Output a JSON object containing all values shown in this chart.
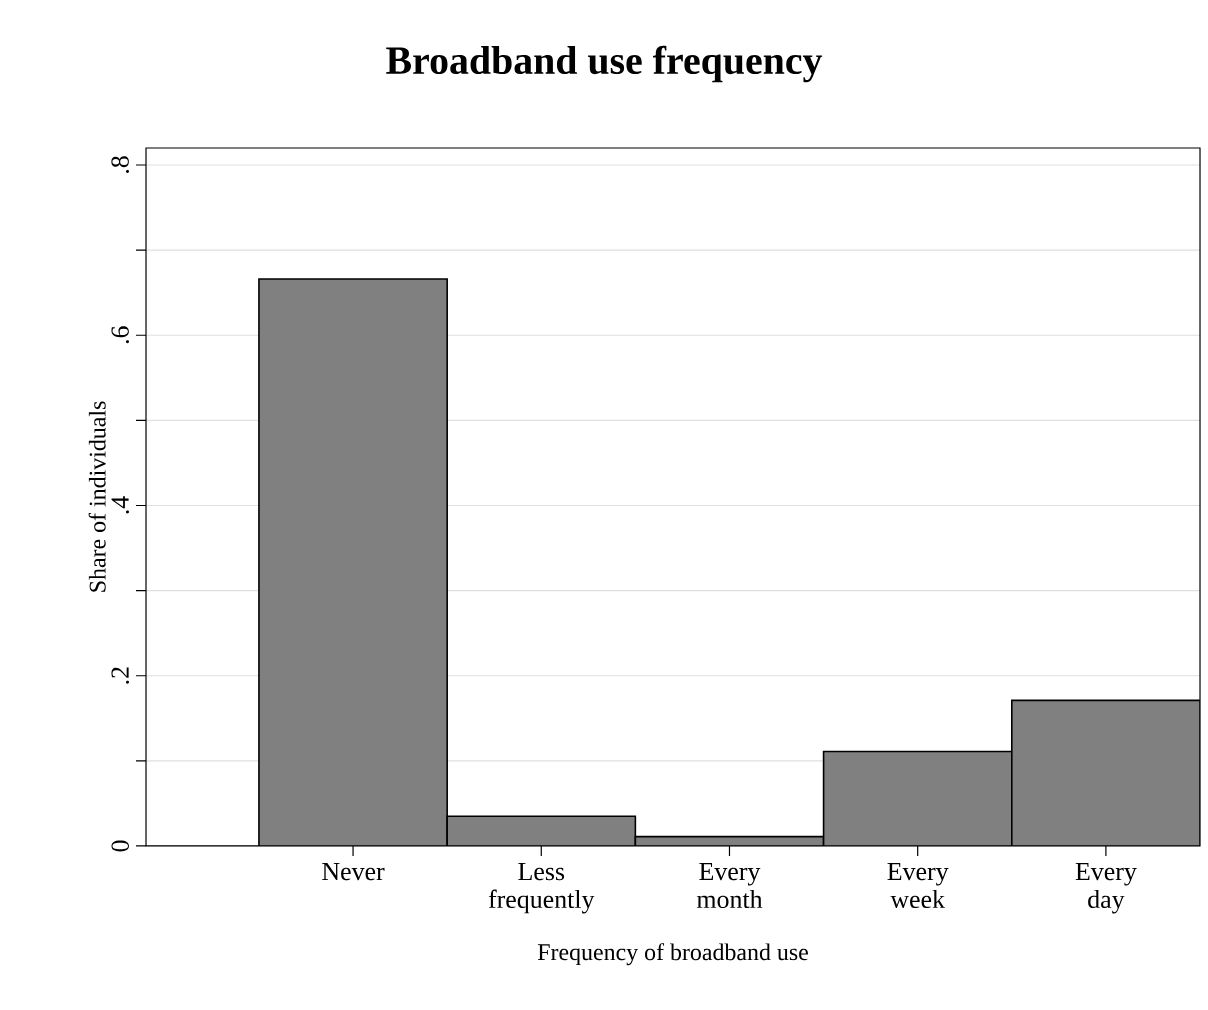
{
  "chart_data": {
    "type": "bar",
    "title": "Broadband use frequency",
    "xlabel": "Frequency of broadband use",
    "ylabel": "Share of individuals",
    "categories": [
      "Never",
      "Less frequently",
      "Every month",
      "Every week",
      "Every day"
    ],
    "values": [
      0.666,
      0.035,
      0.011,
      0.111,
      0.171
    ],
    "color": "#808080",
    "ylim": [
      0,
      0.82
    ],
    "yticks": [
      {
        "value": 0,
        "label": "0"
      },
      {
        "value": 0.1,
        "label": null
      },
      {
        "value": 0.2,
        "label": ".2"
      },
      {
        "value": 0.3,
        "label": null
      },
      {
        "value": 0.4,
        "label": ".4"
      },
      {
        "value": 0.5,
        "label": null
      },
      {
        "value": 0.6,
        "label": ".6"
      },
      {
        "value": 0.7,
        "label": null
      },
      {
        "value": 0.8,
        "label": ".8"
      }
    ],
    "grid": "y"
  }
}
